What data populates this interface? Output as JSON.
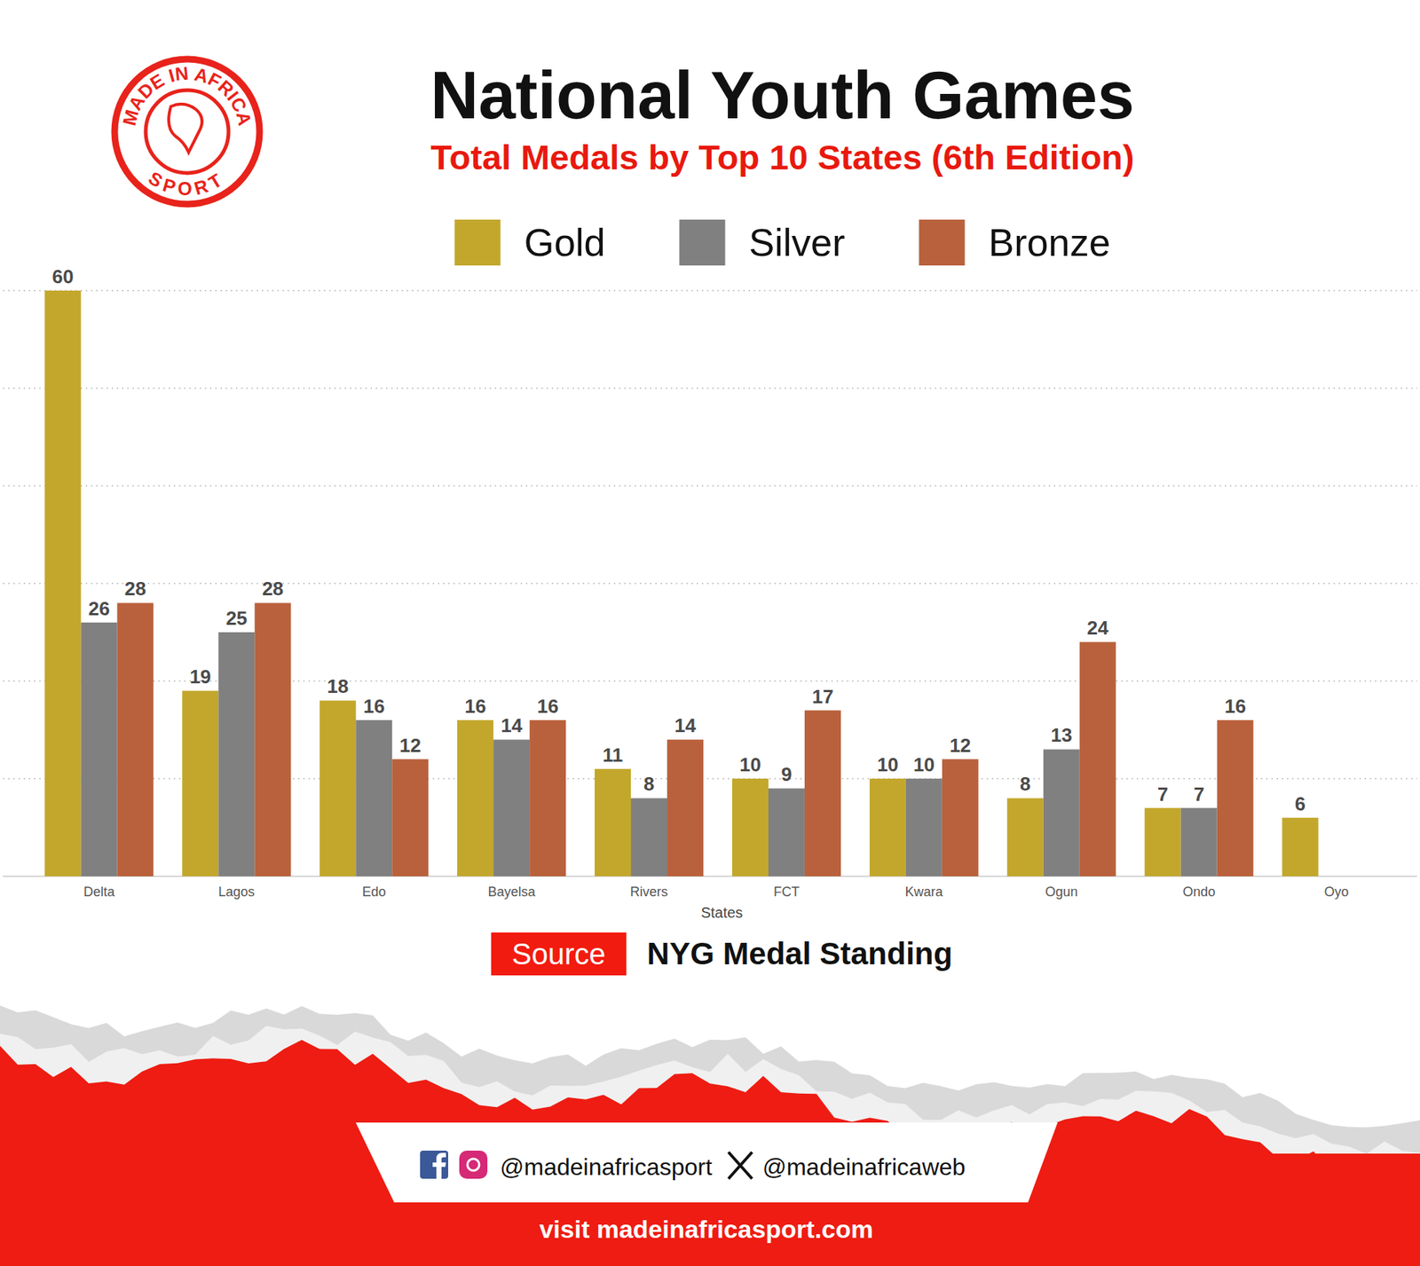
{
  "chart_data": {
    "type": "bar",
    "title": "National Youth Games",
    "subtitle": "Total Medals by Top 10 States (6th Edition)",
    "x_label": "States",
    "categories": [
      "Delta",
      "Lagos",
      "Edo",
      "Bayelsa",
      "Rivers",
      "FCT",
      "Kwara",
      "Ogun",
      "Ondo",
      "Oyo"
    ],
    "series": [
      {
        "name": "Gold",
        "color": "#c3a72c",
        "values": [
          60,
          19,
          18,
          16,
          11,
          10,
          10,
          8,
          7,
          6
        ]
      },
      {
        "name": "Silver",
        "color": "#808080",
        "values": [
          26,
          25,
          16,
          14,
          8,
          9,
          10,
          13,
          7,
          null
        ]
      },
      {
        "name": "Bronze",
        "color": "#b9613c",
        "values": [
          28,
          28,
          12,
          16,
          14,
          17,
          12,
          24,
          16,
          null
        ]
      }
    ],
    "ylim": [
      0,
      60
    ],
    "yticks": [
      0,
      10,
      20,
      30,
      40,
      50,
      60
    ],
    "grid": true,
    "tick_labels": "x",
    "data_labels": true,
    "legend": "top"
  },
  "source": {
    "label": "Source",
    "text": "NYG Medal Standing"
  },
  "logo": {
    "top": "MADE IN AFRICA",
    "bottom": "SPORT"
  },
  "footer": {
    "handle_social": "@madeinafricasport",
    "handle_x": "@madeinafricaweb",
    "website": "visit madeinafricasport.com"
  }
}
